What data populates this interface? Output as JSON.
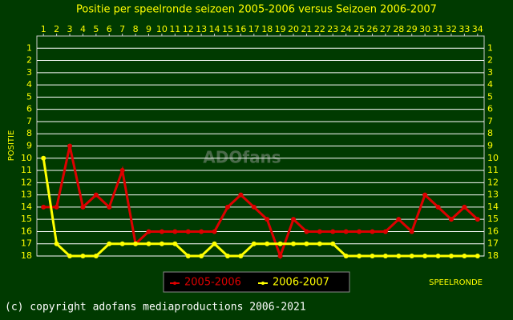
{
  "chart_data": {
    "type": "line",
    "title": "Positie per speelronde seizoen 2005-2006 versus Seizoen 2006-2007",
    "y_label": "POSITIE",
    "x_label": "SPEELRONDE",
    "watermark": "ADOfans",
    "footer": "(c) copyright adofans mediaproductions 2006-2021",
    "x": [
      1,
      2,
      3,
      4,
      5,
      6,
      7,
      8,
      9,
      10,
      11,
      12,
      13,
      14,
      15,
      16,
      17,
      18,
      19,
      20,
      21,
      22,
      23,
      24,
      25,
      26,
      27,
      28,
      29,
      30,
      31,
      32,
      33,
      34
    ],
    "xlim": [
      0.5,
      34.5
    ],
    "xticks": [
      1,
      2,
      3,
      4,
      5,
      6,
      7,
      8,
      9,
      10,
      11,
      12,
      13,
      14,
      15,
      16,
      17,
      18,
      19,
      20,
      21,
      22,
      23,
      24,
      25,
      26,
      27,
      28,
      29,
      30,
      31,
      32,
      33,
      34
    ],
    "ylim": [
      0,
      18
    ],
    "y_inverted": true,
    "yticks": [
      1,
      2,
      3,
      4,
      5,
      6,
      7,
      8,
      9,
      10,
      11,
      12,
      13,
      14,
      15,
      16,
      17,
      18
    ],
    "grid": true,
    "series": [
      {
        "name": "2005-2006",
        "color": "#dd0000",
        "values": [
          14,
          14,
          9,
          14,
          13,
          14,
          11,
          17,
          16,
          16,
          16,
          16,
          16,
          16,
          14,
          13,
          14,
          15,
          18,
          15,
          16,
          16,
          16,
          16,
          16,
          16,
          16,
          15,
          16,
          13,
          14,
          15,
          14,
          15
        ]
      },
      {
        "name": "2006-2007",
        "color": "#ffff00",
        "values": [
          10,
          17,
          18,
          18,
          18,
          17,
          17,
          17,
          17,
          17,
          17,
          18,
          18,
          17,
          18,
          18,
          17,
          17,
          17,
          17,
          17,
          17,
          17,
          18,
          18,
          18,
          18,
          18,
          18,
          18,
          18,
          18,
          18,
          18
        ]
      }
    ]
  }
}
